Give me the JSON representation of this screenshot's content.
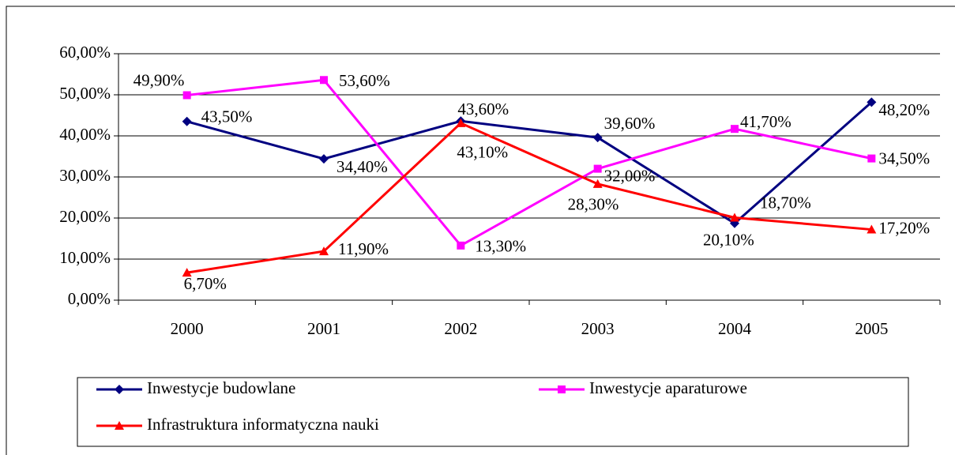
{
  "chart_data": {
    "type": "line",
    "categories": [
      "2000",
      "2001",
      "2002",
      "2003",
      "2004",
      "2005"
    ],
    "ylim": [
      0,
      60
    ],
    "yticks": [
      {
        "value": 0,
        "label": "0,00%"
      },
      {
        "value": 10,
        "label": "10,00%"
      },
      {
        "value": 20,
        "label": "20,00%"
      },
      {
        "value": 30,
        "label": "30,00%"
      },
      {
        "value": 40,
        "label": "40,00%"
      },
      {
        "value": 50,
        "label": "50,00%"
      },
      {
        "value": 60,
        "label": "60,00%"
      }
    ],
    "grid": true,
    "legend": "bottom",
    "series": [
      {
        "name": "Inwestycje budowlane",
        "color": "#000080",
        "marker": "diamond",
        "values": [
          43.5,
          34.4,
          43.6,
          39.6,
          18.7,
          48.2
        ],
        "value_labels": [
          "43,50%",
          "34,40%",
          "43,60%",
          "39,60%",
          "18,70%",
          "48,20%"
        ]
      },
      {
        "name": "Inwestycje aparaturowe",
        "color": "#ff00ff",
        "marker": "square",
        "values": [
          49.9,
          53.6,
          13.3,
          32.0,
          41.7,
          34.5
        ],
        "value_labels": [
          "49,90%",
          "53,60%",
          "13,30%",
          "32,00%",
          "41,70%",
          "34,50%"
        ]
      },
      {
        "name": "Infrastruktura informatyczna nauki",
        "color": "#ff0000",
        "marker": "triangle",
        "values": [
          6.7,
          11.9,
          43.1,
          28.3,
          20.1,
          17.2
        ],
        "value_labels": [
          "6,70%",
          "11,90%",
          "43,10%",
          "28,30%",
          "20,10%",
          "17,20%"
        ]
      }
    ]
  }
}
